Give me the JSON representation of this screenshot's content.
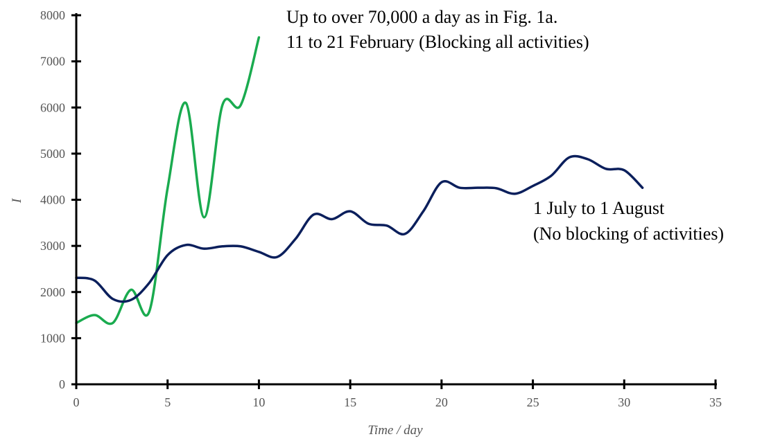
{
  "chart_data": {
    "type": "line",
    "xlabel": "Time / day",
    "ylabel": "I",
    "xlim": [
      0,
      35
    ],
    "ylim": [
      0,
      8000
    ],
    "xticks": [
      0,
      5,
      10,
      15,
      20,
      25,
      30,
      35
    ],
    "yticks": [
      0,
      1000,
      2000,
      3000,
      4000,
      5000,
      6000,
      7000,
      8000
    ],
    "grid": false,
    "series": [
      {
        "key": "feb",
        "color": "#1aab4f",
        "x": [
          0,
          1,
          2,
          3,
          4,
          5,
          6,
          7,
          8,
          9,
          10
        ],
        "values": [
          1330,
          1500,
          1330,
          2050,
          1580,
          4250,
          6100,
          3620,
          6050,
          6050,
          7520
        ]
      },
      {
        "key": "jul",
        "color": "#0b1f5c",
        "x": [
          0,
          1,
          2,
          3,
          4,
          5,
          6,
          7,
          8,
          9,
          10,
          11,
          12,
          13,
          14,
          15,
          16,
          17,
          18,
          19,
          20,
          21,
          22,
          23,
          24,
          25,
          26,
          27,
          28,
          29,
          30,
          31
        ],
        "values": [
          2310,
          2250,
          1850,
          1830,
          2200,
          2800,
          3020,
          2940,
          2990,
          2990,
          2870,
          2760,
          3150,
          3680,
          3580,
          3750,
          3480,
          3440,
          3260,
          3750,
          4380,
          4260,
          4260,
          4250,
          4130,
          4300,
          4520,
          4920,
          4880,
          4670,
          4640,
          4260
        ]
      }
    ],
    "annotations": {
      "feb_line1": "Up to over 70,000 a day as in Fig. 1a.",
      "feb_line2": "11 to 21 February (Blocking all activities)",
      "jul_line1": "1 July to 1 August",
      "jul_line2": "(No blocking of activities)"
    }
  }
}
